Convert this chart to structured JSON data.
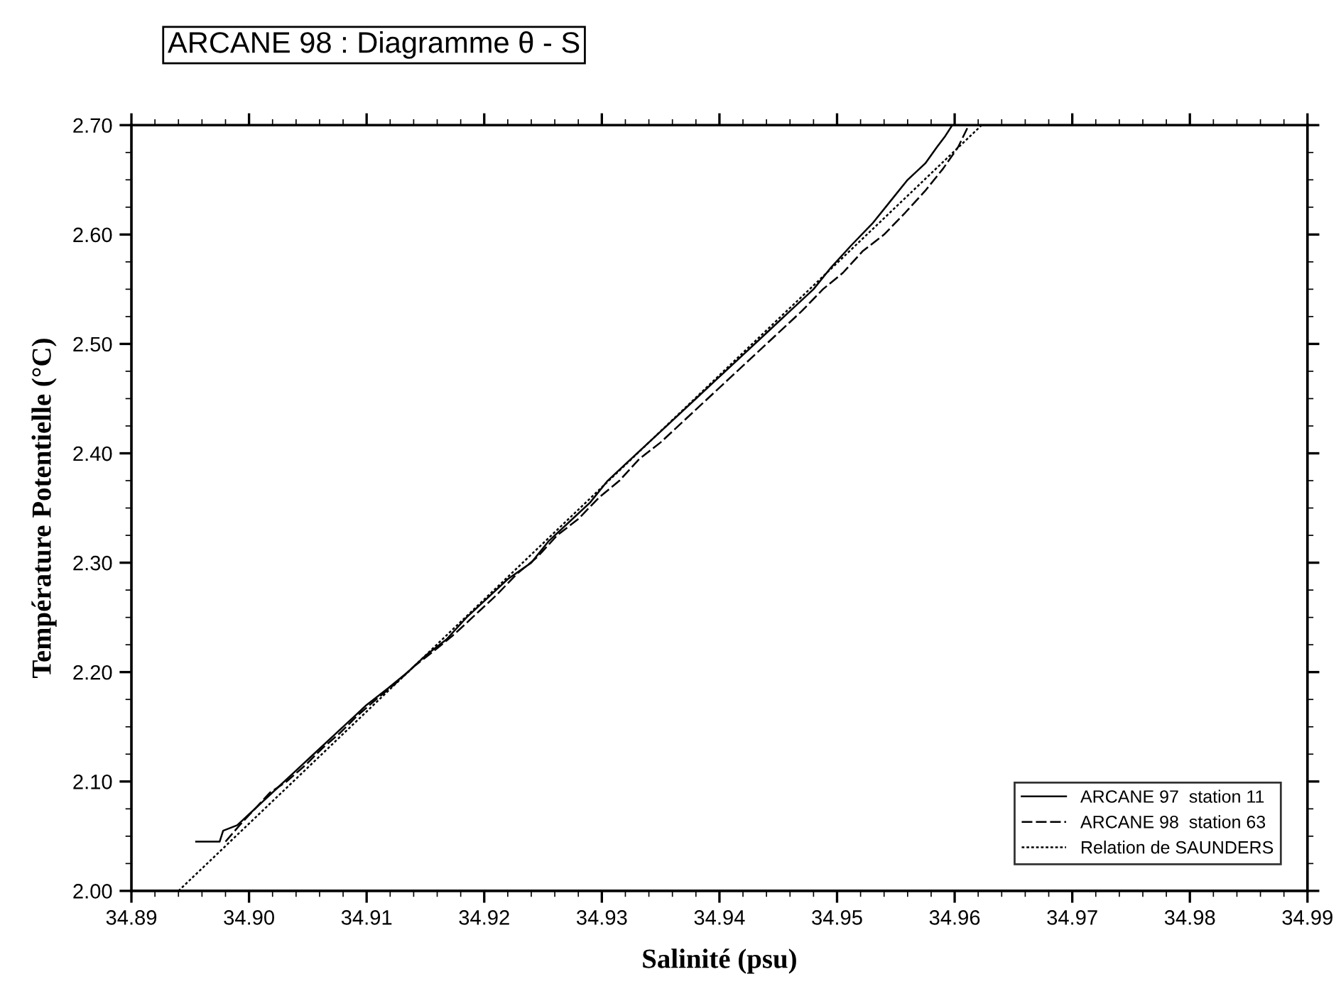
{
  "chart_data": {
    "type": "line",
    "title": "ARCANE 98 : Diagramme θ - S",
    "xlabel": "Salinité (psu)",
    "ylabel": "Température Potentielle (°C)",
    "xlim": [
      34.89,
      34.99
    ],
    "xticks": [
      34.89,
      {
        "value": 34.9,
        "label": "34.90"
      },
      34.91,
      34.92,
      34.93,
      34.94,
      34.95,
      34.96,
      34.97,
      34.98,
      34.99
    ],
    "ylim": [
      2.0,
      2.7
    ],
    "yticks": [
      {
        "value": 2.0,
        "label": "2.00"
      },
      {
        "value": 2.1,
        "label": "2.10"
      },
      {
        "value": 2.2,
        "label": "2.20"
      },
      {
        "value": 2.3,
        "label": "2.30"
      },
      {
        "value": 2.4,
        "label": "2.40"
      },
      {
        "value": 2.5,
        "label": "2.50"
      },
      {
        "value": 2.6,
        "label": "2.60"
      },
      {
        "value": 2.7,
        "label": "2.70"
      }
    ],
    "legend": "bottom right",
    "grid": false,
    "marker": "none",
    "series": [
      {
        "name": "ARCANE 97  station 11",
        "color": "#000000",
        "line_style": "solid",
        "x": [
          34.8955,
          34.8975,
          34.8978,
          34.899,
          34.9,
          34.901,
          34.9025,
          34.904,
          34.9055,
          34.907,
          34.9085,
          34.91,
          34.9118,
          34.9135,
          34.915,
          34.9168,
          34.9185,
          34.92,
          34.922,
          34.924,
          34.9255,
          34.9275,
          34.929,
          34.9305,
          34.932,
          34.934,
          34.936,
          34.938,
          34.94,
          34.942,
          34.944,
          34.946,
          34.948,
          34.9495,
          34.9512,
          34.953,
          34.9545,
          34.956,
          34.9575,
          34.9585,
          34.9592,
          34.9598
        ],
        "values": [
          2.045,
          2.045,
          2.055,
          2.06,
          2.07,
          2.08,
          2.095,
          2.11,
          2.125,
          2.14,
          2.155,
          2.17,
          2.185,
          2.2,
          2.215,
          2.23,
          2.25,
          2.265,
          2.285,
          2.3,
          2.32,
          2.34,
          2.355,
          2.375,
          2.39,
          2.41,
          2.43,
          2.45,
          2.47,
          2.49,
          2.51,
          2.53,
          2.55,
          2.57,
          2.59,
          2.61,
          2.63,
          2.65,
          2.665,
          2.68,
          2.69,
          2.7
        ]
      },
      {
        "name": "ARCANE 98  station 63",
        "color": "#000000",
        "line_style": "dashed",
        "x": [
          34.898,
          34.8992,
          34.9005,
          34.9018,
          34.9032,
          34.9048,
          34.9062,
          34.9078,
          34.9092,
          34.9108,
          34.9125,
          34.914,
          34.9158,
          34.9175,
          34.919,
          34.921,
          34.9228,
          34.9245,
          34.9262,
          34.928,
          34.9298,
          34.9315,
          34.9332,
          34.935,
          34.937,
          34.939,
          34.941,
          34.943,
          34.945,
          34.947,
          34.9488,
          34.9505,
          34.9522,
          34.954,
          34.9558,
          34.9575,
          34.959,
          34.9603,
          34.9612
        ],
        "values": [
          2.045,
          2.06,
          2.075,
          2.09,
          2.1,
          2.115,
          2.13,
          2.145,
          2.16,
          2.175,
          2.19,
          2.205,
          2.22,
          2.235,
          2.25,
          2.27,
          2.29,
          2.305,
          2.325,
          2.34,
          2.36,
          2.375,
          2.395,
          2.41,
          2.43,
          2.45,
          2.47,
          2.49,
          2.51,
          2.53,
          2.55,
          2.565,
          2.585,
          2.6,
          2.62,
          2.64,
          2.66,
          2.68,
          2.7
        ]
      },
      {
        "name": "Relation de SAUNDERS",
        "color": "#000000",
        "line_style": "dotted",
        "x": [
          34.894,
          34.9623
        ],
        "values": [
          2.0,
          2.7
        ]
      }
    ]
  }
}
